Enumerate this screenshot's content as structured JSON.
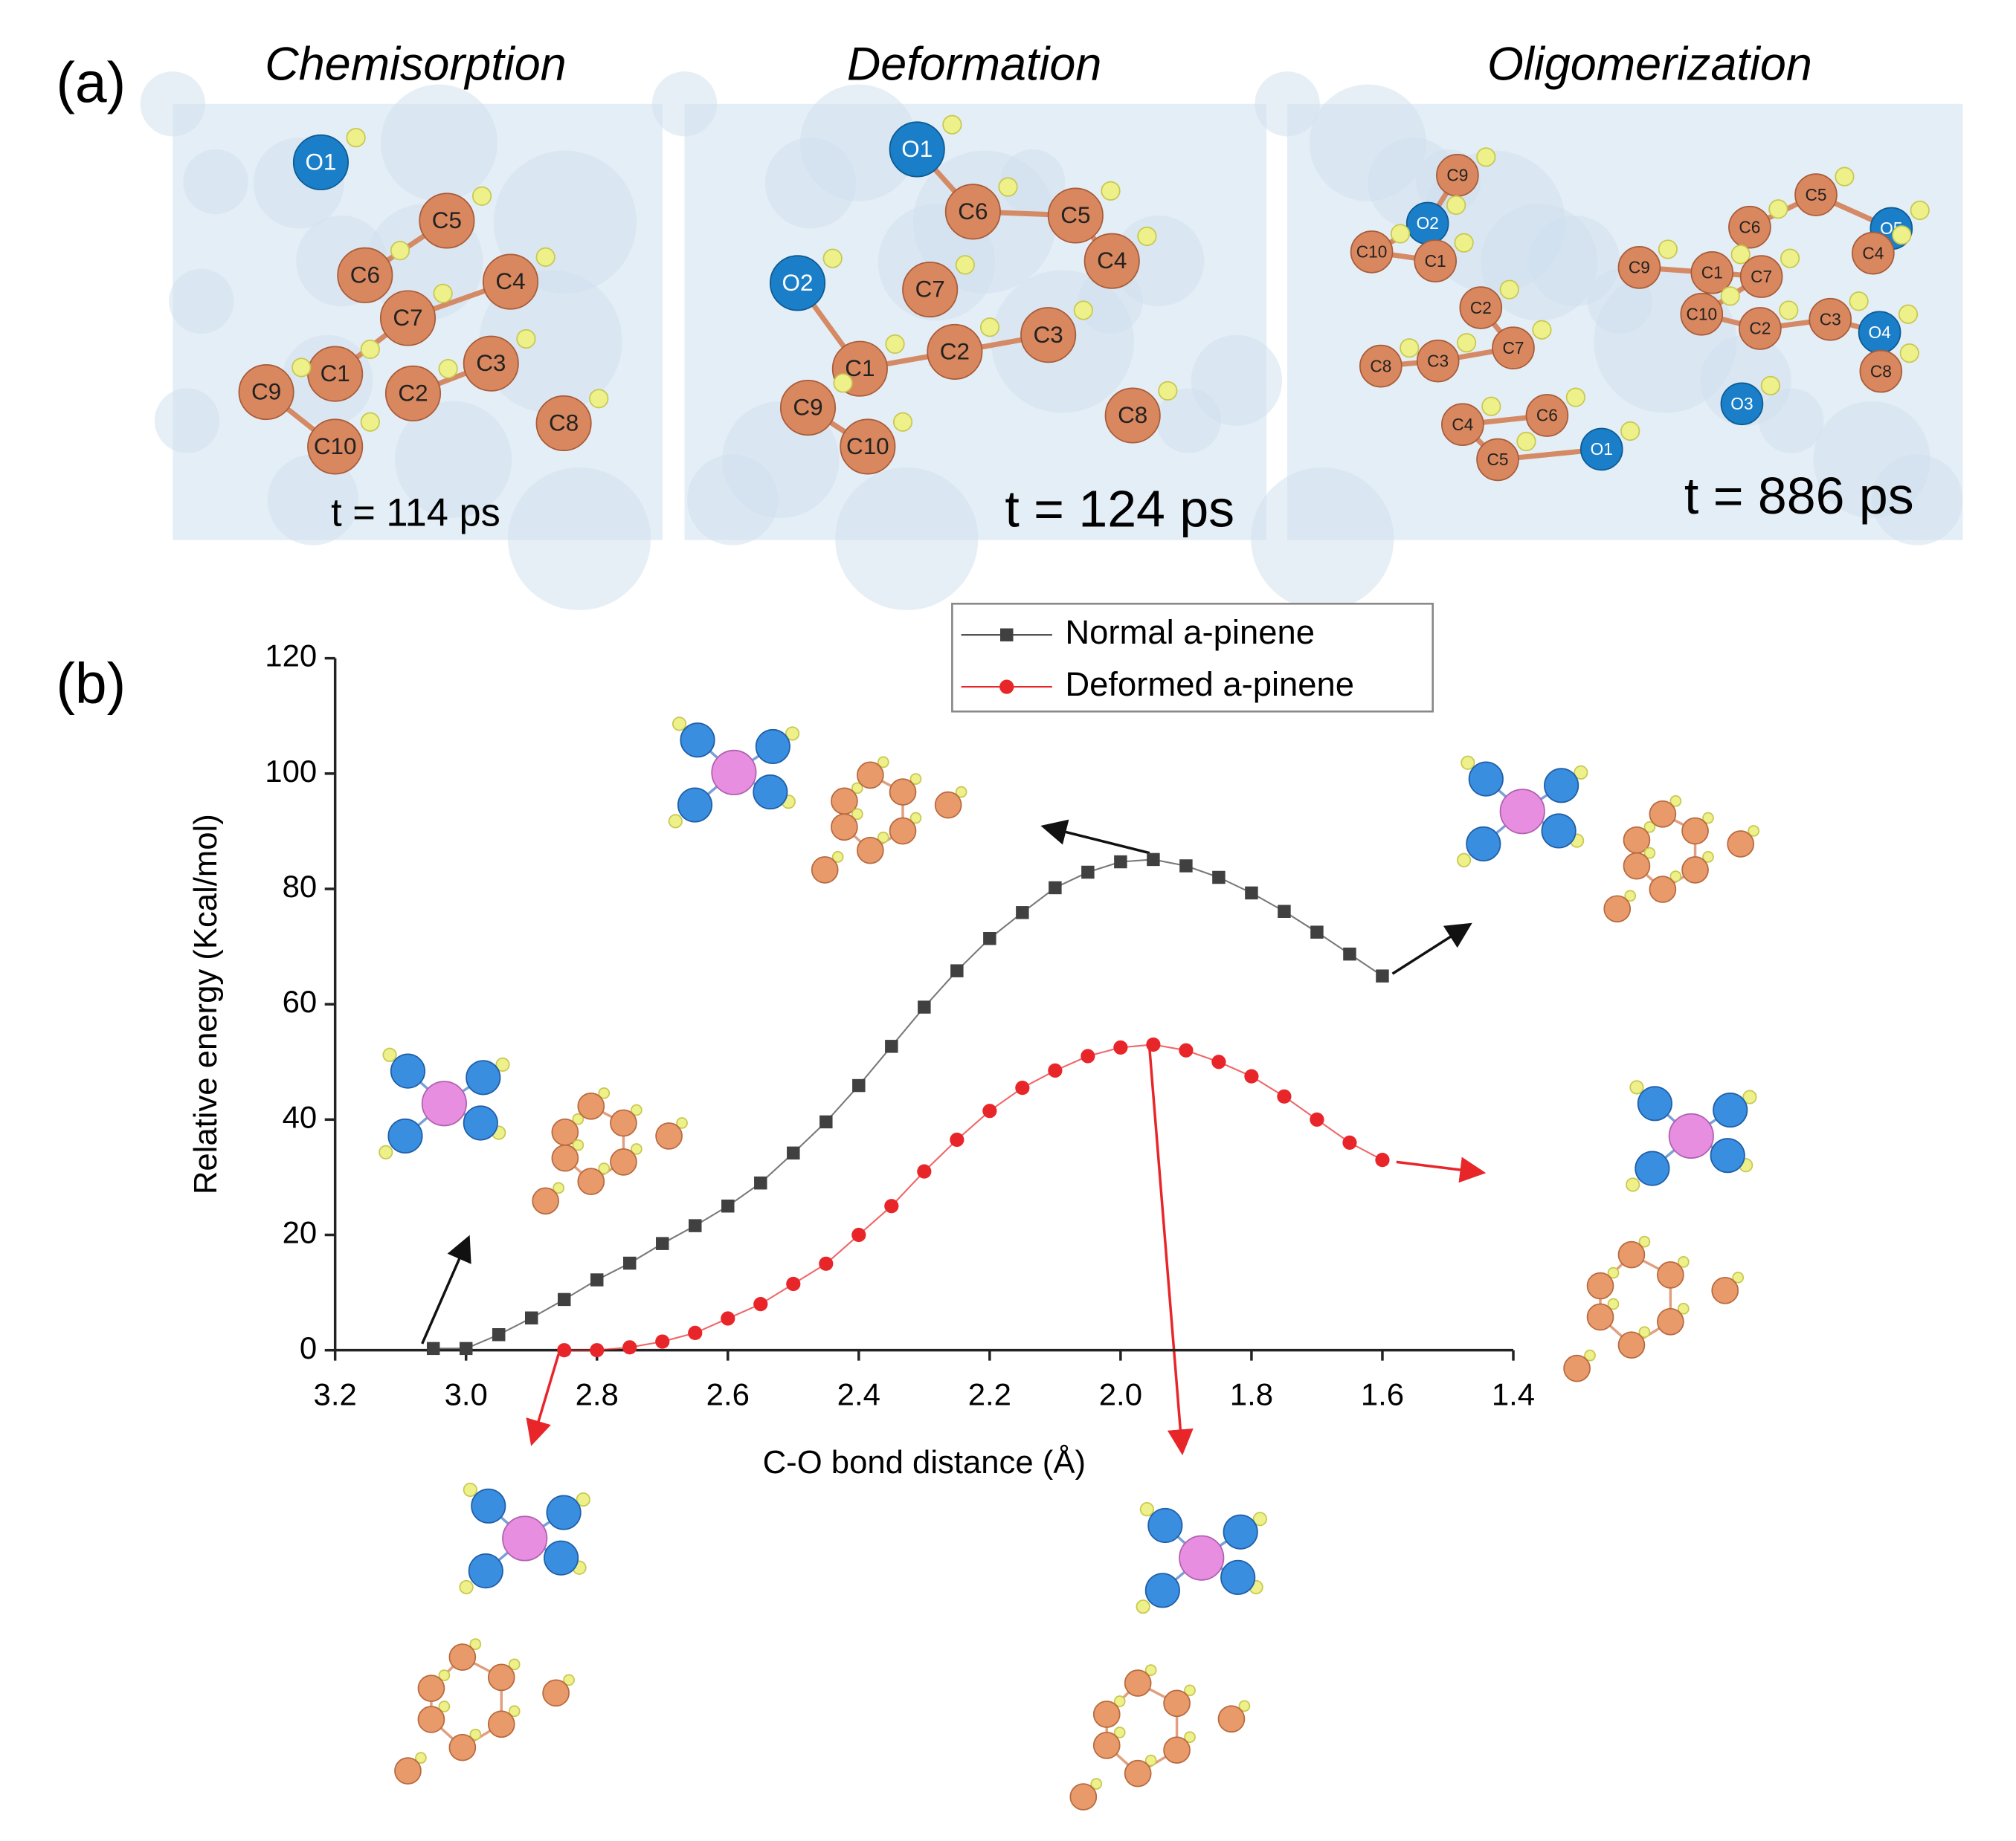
{
  "panel_a": {
    "label": "(a)",
    "panels": [
      {
        "title": "Chemisorption",
        "time": "t = 114 ps",
        "atoms": [
          "O1",
          "C5",
          "C6",
          "C4",
          "C7",
          "C1",
          "C3",
          "C2",
          "C9",
          "C10",
          "C8"
        ]
      },
      {
        "title": "Deformation",
        "time": "t = 124 ps",
        "atoms": [
          "O1",
          "C6",
          "C5",
          "C4",
          "C7",
          "O2",
          "C1",
          "C2",
          "C3",
          "C9",
          "C10",
          "C8"
        ]
      },
      {
        "title": "Oligomerization",
        "time": "t = 886 ps",
        "atoms": [
          "C9",
          "O2",
          "C10",
          "C1",
          "C6",
          "C5",
          "O5",
          "C4",
          "C9",
          "C1",
          "C7",
          "C10",
          "C2",
          "C3",
          "O4",
          "C8",
          "O3",
          "C2",
          "C7",
          "C3",
          "C8",
          "C6",
          "C4",
          "C5",
          "O1"
        ]
      }
    ]
  },
  "panel_b_label": "(b)",
  "chart_data": {
    "type": "line",
    "xlabel": "C-O bond distance (Å)",
    "ylabel": "Relative energy (Kcal/mol)",
    "xlim": [
      3.2,
      1.4
    ],
    "ylim": [
      0,
      120
    ],
    "xticks": [
      3.2,
      {
        "value": 3,
        "label": "3.0"
      },
      2.8,
      2.6,
      2.4,
      2.2,
      {
        "value": 2,
        "label": "2.0"
      },
      1.8,
      1.6,
      1.4
    ],
    "yticks": [
      0,
      20,
      40,
      60,
      80,
      100,
      120
    ],
    "legend": "top-center",
    "series": [
      {
        "name": "Normal a-pinene",
        "color": "#404040",
        "marker": "square",
        "x": [
          3.05,
          3.0,
          2.95,
          2.9,
          2.85,
          2.8,
          2.75,
          2.7,
          2.65,
          2.6,
          2.55,
          2.5,
          2.45,
          2.4,
          2.35,
          2.3,
          2.25,
          2.2,
          2.15,
          2.1,
          2.05,
          2.0,
          1.95,
          1.9,
          1.85,
          1.8,
          1.75,
          1.7,
          1.65,
          1.6
        ],
        "values": [
          0.3,
          0.3,
          2.7,
          5.6,
          8.8,
          12.2,
          15.1,
          18.5,
          21.6,
          25,
          29,
          34.2,
          39.6,
          45.9,
          52.7,
          59.5,
          65.8,
          71.4,
          75.9,
          80.2,
          82.9,
          84.7,
          85.1,
          84,
          82,
          79.3,
          76.1,
          72.5,
          68.7,
          64.9
        ]
      },
      {
        "name": "Deformed a-pinene",
        "color": "#e8262a",
        "marker": "circle",
        "x": [
          2.85,
          2.8,
          2.75,
          2.7,
          2.65,
          2.6,
          2.55,
          2.5,
          2.45,
          2.4,
          2.35,
          2.3,
          2.25,
          2.2,
          2.15,
          2.1,
          2.05,
          2.0,
          1.95,
          1.9,
          1.85,
          1.8,
          1.75,
          1.7,
          1.65,
          1.6
        ],
        "values": [
          0,
          0,
          0.5,
          1.5,
          3,
          5.5,
          8,
          11.5,
          15,
          20,
          25,
          31,
          36.5,
          41.5,
          45.5,
          48.5,
          51,
          52.5,
          53,
          52,
          50,
          47.5,
          44,
          40,
          36,
          33
        ]
      }
    ]
  }
}
